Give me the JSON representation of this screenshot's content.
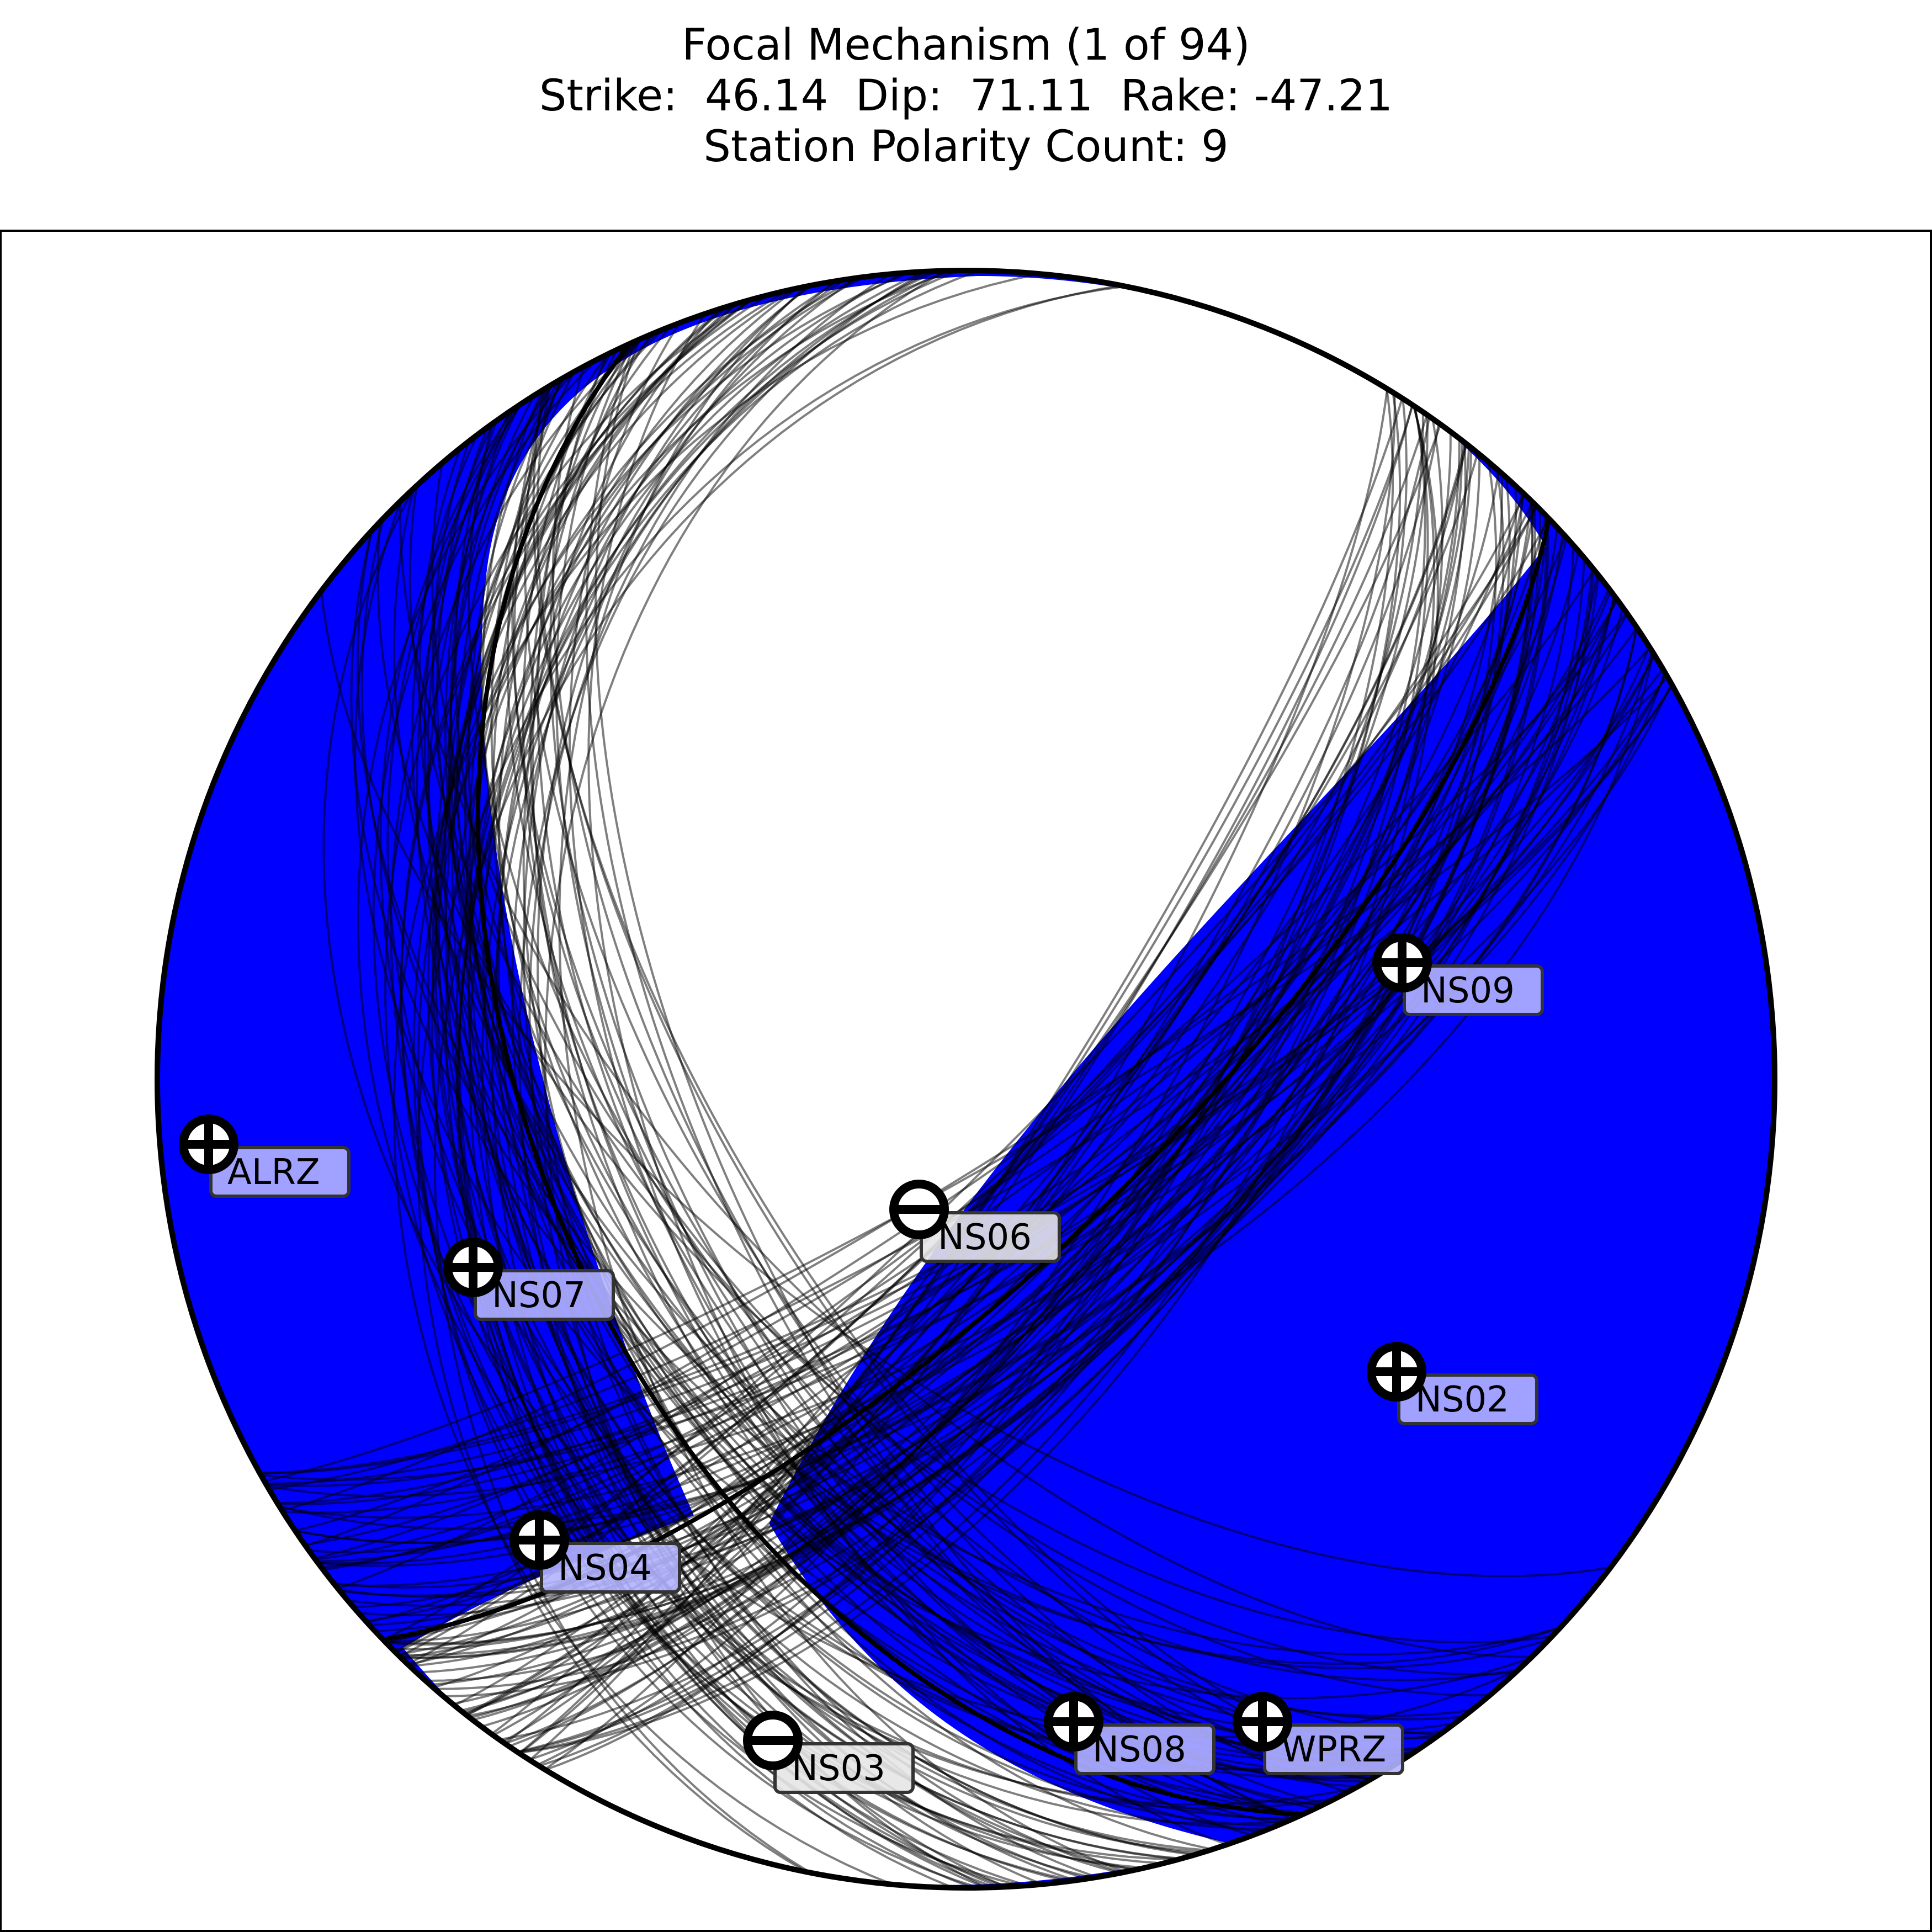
{
  "title": {
    "line1": "Focal Mechanism (1 of 94)",
    "line2": "Strike:  46.14  Dip:  71.11  Rake: -47.21",
    "line3": "Station Polarity Count: 9"
  },
  "mechanism": {
    "strike": 46.14,
    "dip": 71.11,
    "rake": -47.21,
    "index": 1,
    "total": 94,
    "polarity_count": 9
  },
  "colors": {
    "compression_fill": "#0000ff",
    "dilatation_fill": "#ffffff",
    "outline": "#000000",
    "nodal_lines": "#000000",
    "label_box": "#b3b3ff",
    "label_box_dilatation": "#e6e6e6"
  },
  "stations": [
    {
      "name": "ALRZ",
      "polarity": "+"
    },
    {
      "name": "NS07",
      "polarity": "+"
    },
    {
      "name": "NS04",
      "polarity": "+"
    },
    {
      "name": "NS03",
      "polarity": "-"
    },
    {
      "name": "NS06",
      "polarity": "-"
    },
    {
      "name": "NS08",
      "polarity": "+"
    },
    {
      "name": "WPRZ",
      "polarity": "+"
    },
    {
      "name": "NS02",
      "polarity": "+"
    },
    {
      "name": "NS09",
      "polarity": "+"
    }
  ]
}
